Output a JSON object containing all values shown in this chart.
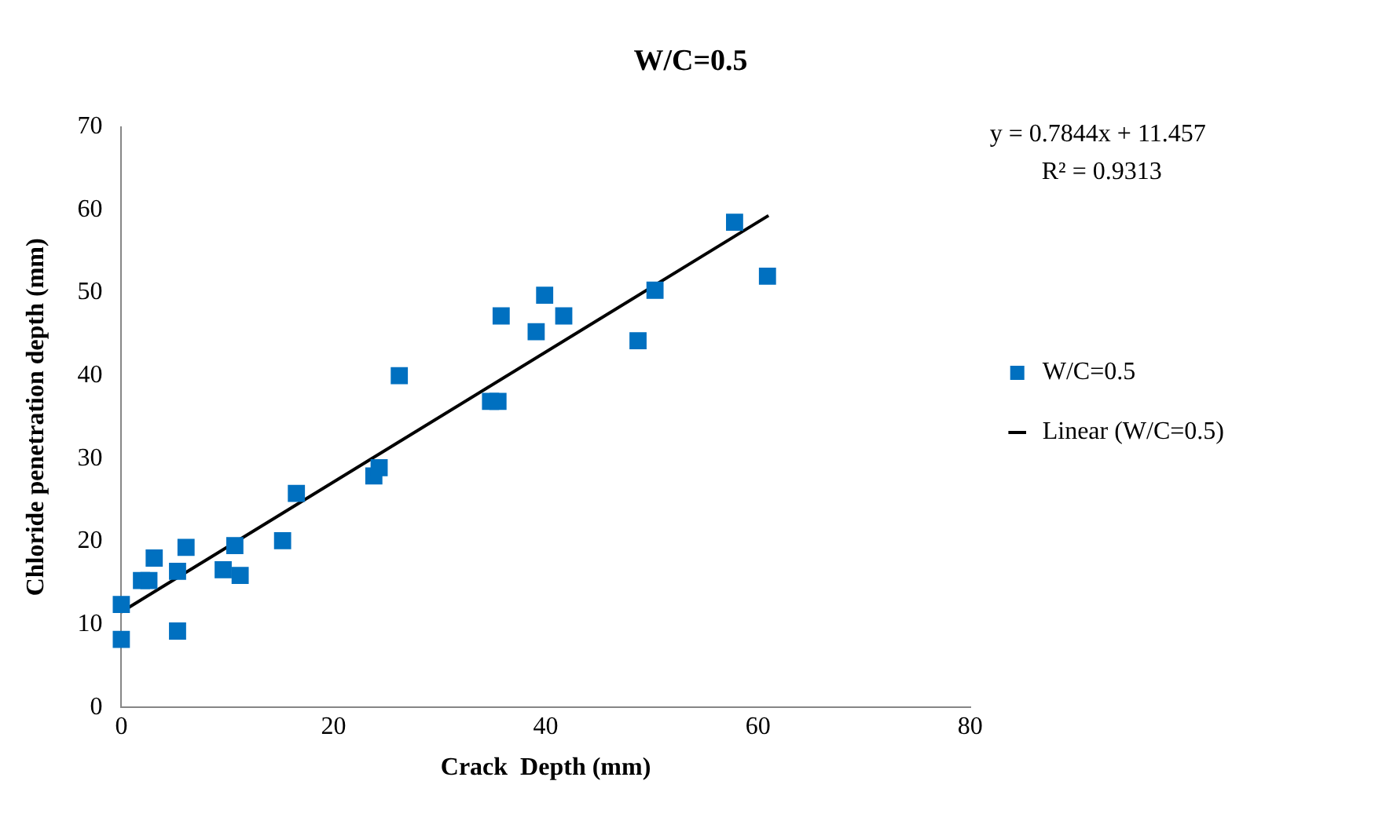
{
  "chart_data": {
    "type": "scatter",
    "title": "W/C=0.5",
    "xlabel": "Crack  Depth (mm)",
    "ylabel": "Chloride penetration depth (mm)",
    "xlim": [
      0,
      80
    ],
    "xticks": [
      0,
      20,
      40,
      60,
      80
    ],
    "ylim": [
      0,
      70
    ],
    "yticks": [
      0,
      10,
      20,
      30,
      40,
      50,
      60,
      70
    ],
    "legend": "right",
    "annotations": [
      "y = 0.7844x + 11.457",
      "R² = 0.9313"
    ],
    "series": [
      {
        "name": "W/C=0.5",
        "type": "scatter",
        "marker": "square",
        "color": "#0070c0",
        "x": [
          0,
          0,
          5.3,
          1.9,
          2.6,
          3.1,
          5.3,
          6.1,
          9.6,
          10.7,
          11.2,
          15.2,
          16.5,
          23.8,
          24.3,
          26.2,
          34.8,
          35.5,
          35.8,
          39.1,
          39.9,
          41.7,
          48.7,
          50.3,
          57.8,
          60.9
        ],
        "values": [
          12.4,
          8.2,
          9.2,
          15.3,
          15.3,
          18.0,
          16.4,
          19.3,
          16.6,
          19.5,
          15.9,
          20.1,
          25.8,
          27.9,
          28.9,
          40.0,
          36.9,
          36.9,
          47.2,
          45.3,
          49.7,
          47.2,
          44.2,
          50.3,
          58.5,
          52.0
        ]
      },
      {
        "name": "Linear (W/C=0.5)",
        "type": "line",
        "marker": "none",
        "color": "#000000",
        "x": [
          0,
          61
        ],
        "values": [
          11.5,
          59.3
        ]
      }
    ]
  }
}
